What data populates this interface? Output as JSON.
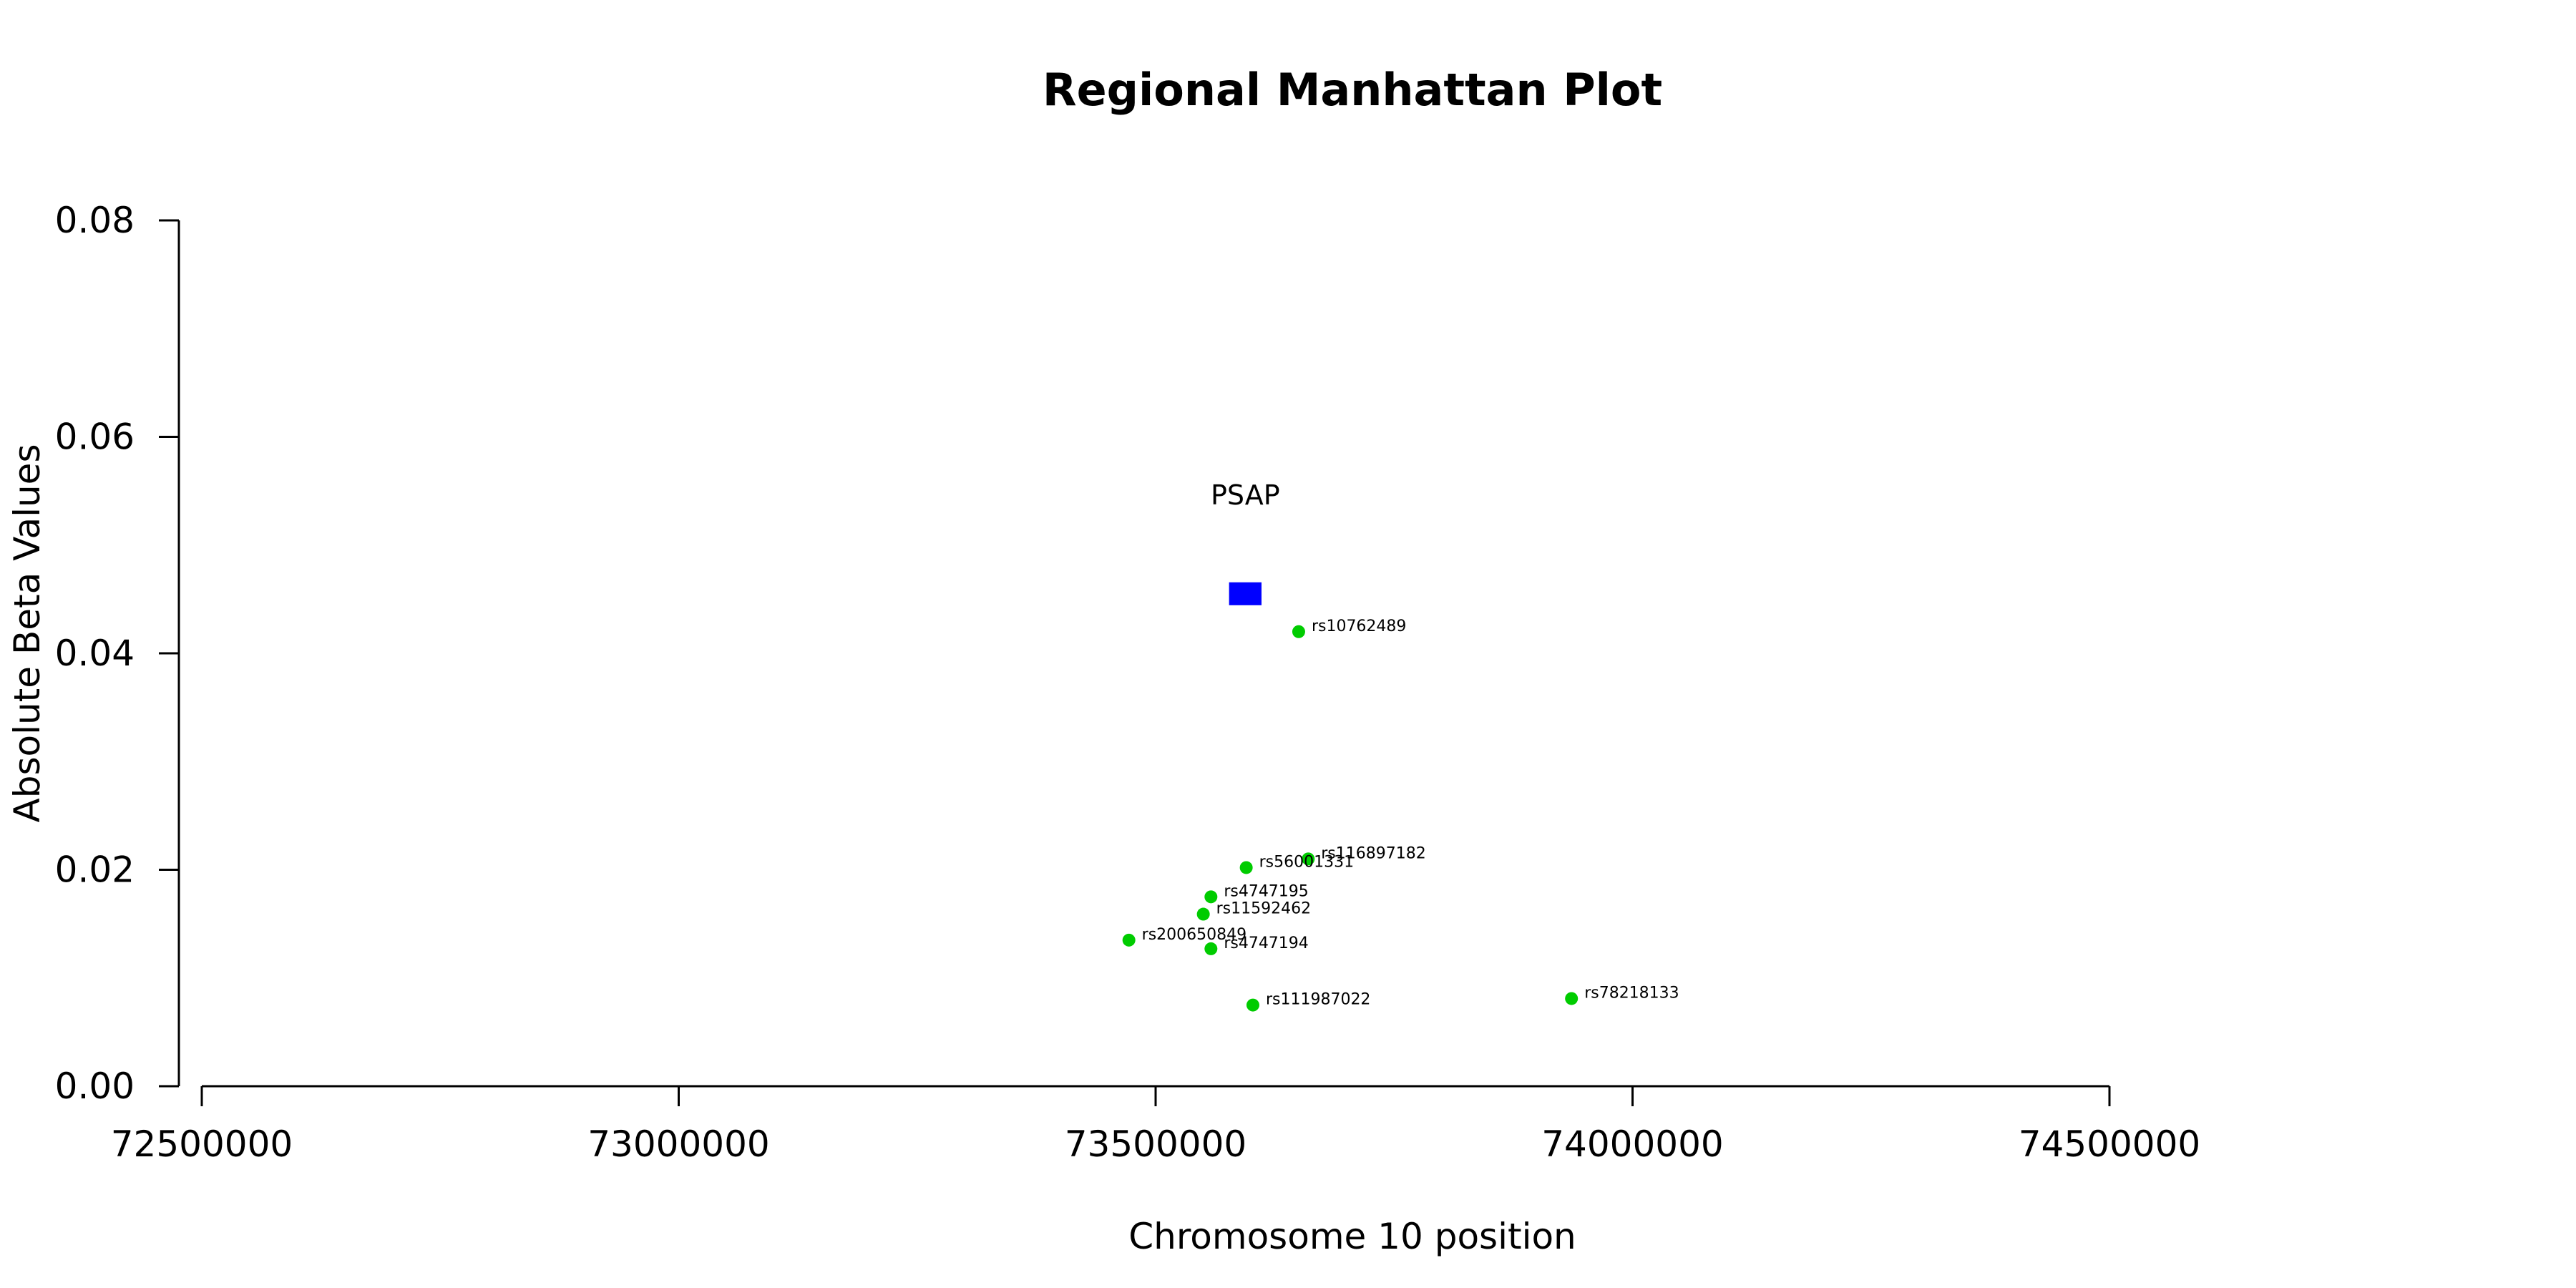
{
  "chart_data": {
    "type": "scatter",
    "title": "Regional Manhattan Plot",
    "xlabel": "Chromosome 10 position",
    "ylabel": "Absolute Beta Values",
    "xlim": [
      72500000,
      74500000
    ],
    "ylim": [
      0,
      0.08
    ],
    "x_ticks": [
      72500000,
      73000000,
      73500000,
      74000000,
      74500000
    ],
    "x_tick_labels": [
      "72500000",
      "73000000",
      "73500000",
      "74000000",
      "74500000"
    ],
    "y_ticks": [
      0,
      0.02,
      0.04,
      0.06,
      0.08
    ],
    "y_tick_labels": [
      "0.00",
      "0.02",
      "0.04",
      "0.06",
      "0.08"
    ],
    "grid": false,
    "point_color": "#00cc00",
    "gene_color": "#0000ff",
    "points": [
      {
        "label": "rs10762489",
        "x": 73650000,
        "y": 0.042
      },
      {
        "label": "rs116897182",
        "x": 73660000,
        "y": 0.021
      },
      {
        "label": "rs56001331",
        "x": 73595000,
        "y": 0.0202
      },
      {
        "label": "rs4747195",
        "x": 73558000,
        "y": 0.0175
      },
      {
        "label": "rs11592462",
        "x": 73550000,
        "y": 0.0159
      },
      {
        "label": "rs200650849",
        "x": 73472000,
        "y": 0.0135
      },
      {
        "label": "rs4747194",
        "x": 73558000,
        "y": 0.0127
      },
      {
        "label": "rs111987022",
        "x": 73602000,
        "y": 0.0075
      },
      {
        "label": "rs78218133",
        "x": 73936000,
        "y": 0.0081
      }
    ],
    "genes": [
      {
        "name": "PSAP",
        "start": 73577000,
        "end": 73611000,
        "y": 0.0455
      }
    ]
  }
}
